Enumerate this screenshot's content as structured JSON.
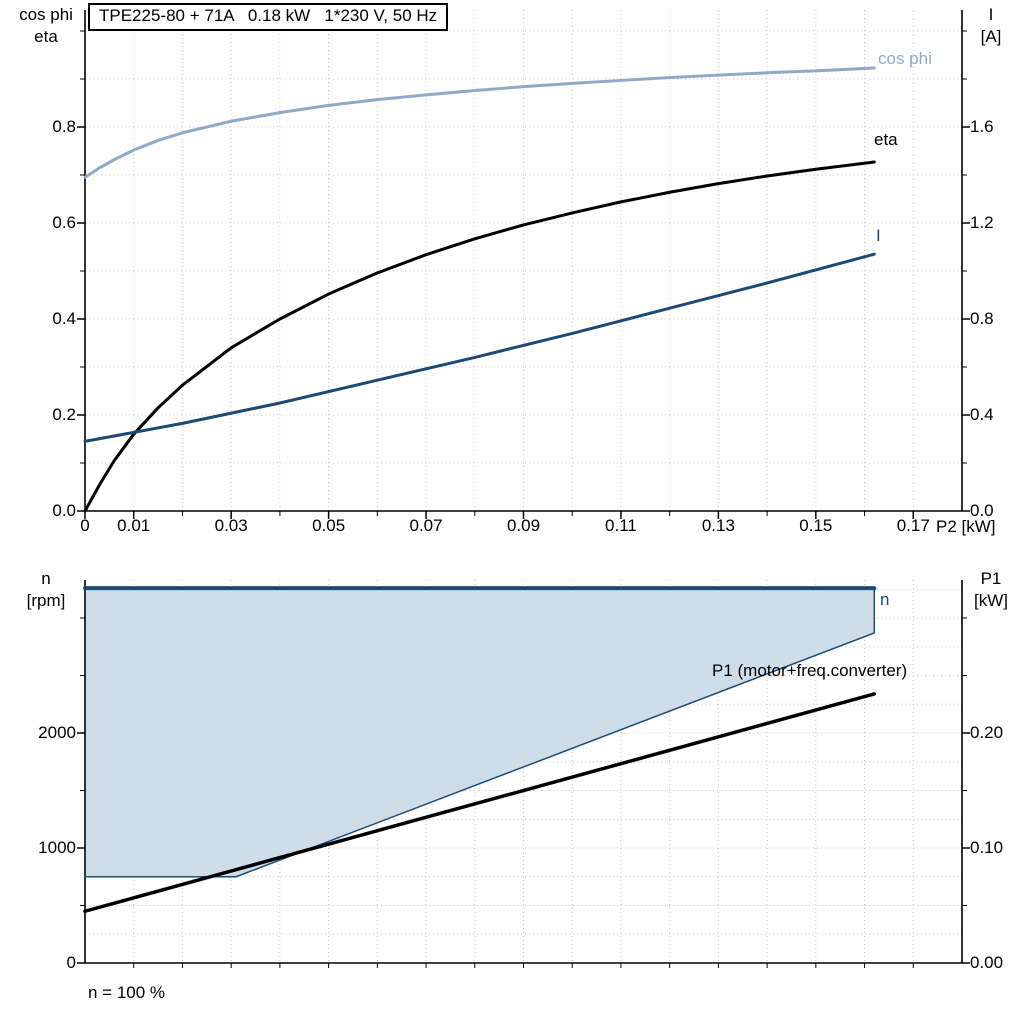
{
  "header": {
    "title": "TPE225-80 + 71A   0.18 kW   1*230 V, 50 Hz"
  },
  "colors": {
    "cos_phi": "#8fa9c7",
    "dark_blue": "#1b4a72",
    "black": "#000000",
    "band_fill": "#cfdde9",
    "grid": "#c3c3c3"
  },
  "top_chart": {
    "left_axis_line1": "cos phi",
    "left_axis_line2": "eta",
    "right_axis_line1": "I",
    "right_axis_line2": "[A]",
    "x_axis_label": "P2 [kW]",
    "curve_labels": {
      "cos_phi": "cos phi",
      "eta": "eta",
      "current": "I"
    }
  },
  "bottom_chart": {
    "left_axis_line1": "n",
    "left_axis_line2": "[rpm]",
    "right_axis_line1": "P1",
    "right_axis_line2": "[kW]",
    "curve_labels": {
      "n": "n",
      "p1": "P1 (motor+freq.converter)"
    },
    "caption": "n = 100 %"
  },
  "chart_data": [
    {
      "type": "line",
      "title": "TPE225-80 + 71A   0.18 kW   1*230 V, 50 Hz",
      "xlabel": "P2 [kW]",
      "ylabel_left": "cos phi / eta",
      "ylabel_right": "I [A]",
      "xlim": [
        0,
        0.18
      ],
      "ylim_left": [
        0,
        1.0
      ],
      "ylim_right": [
        0,
        2.0
      ],
      "grid": true,
      "legend_position": "right-of-curve-ends",
      "x_ticks": [
        0,
        0.01,
        0.03,
        0.05,
        0.07,
        0.09,
        0.11,
        0.13,
        0.15,
        0.17
      ],
      "x_tick_labels": [
        "0",
        "0.01",
        "0.03",
        "0.05",
        "0.07",
        "0.09",
        "0.11",
        "0.13",
        "0.15",
        "0.17"
      ],
      "x_minor_ticks": [
        0.02,
        0.04,
        0.06,
        0.08,
        0.1,
        0.12,
        0.14,
        0.16
      ],
      "y_ticks_left": [
        0,
        0.2,
        0.4,
        0.6,
        0.8
      ],
      "y_tick_labels_left": [
        "0.0",
        "0.2",
        "0.4",
        "0.6",
        "0.8"
      ],
      "y_minor_ticks_left": [
        0.1,
        0.3,
        0.5,
        0.7,
        0.9,
        1.0
      ],
      "y_ticks_right": [
        0,
        0.4,
        0.8,
        1.2,
        1.6
      ],
      "y_tick_labels_right": [
        "0.0",
        "0.4",
        "0.8",
        "1.2",
        "1.6"
      ],
      "y_minor_ticks_right": [
        0.2,
        0.6,
        1.0,
        1.4,
        1.8,
        2.0
      ],
      "series": [
        {
          "name": "cos phi",
          "axis": "left",
          "color": "#8fa9c7",
          "width": 3,
          "x": [
            0,
            0.003,
            0.006,
            0.01,
            0.015,
            0.02,
            0.03,
            0.04,
            0.05,
            0.06,
            0.07,
            0.08,
            0.09,
            0.1,
            0.11,
            0.12,
            0.13,
            0.14,
            0.15,
            0.162
          ],
          "y": [
            0.695,
            0.715,
            0.732,
            0.752,
            0.772,
            0.788,
            0.812,
            0.83,
            0.845,
            0.857,
            0.867,
            0.876,
            0.884,
            0.891,
            0.897,
            0.903,
            0.908,
            0.913,
            0.917,
            0.923
          ]
        },
        {
          "name": "eta",
          "axis": "left",
          "color": "#000000",
          "width": 3,
          "x": [
            0,
            0.003,
            0.006,
            0.01,
            0.015,
            0.02,
            0.03,
            0.04,
            0.05,
            0.06,
            0.07,
            0.08,
            0.09,
            0.1,
            0.11,
            0.12,
            0.13,
            0.14,
            0.15,
            0.162
          ],
          "y": [
            0,
            0.055,
            0.105,
            0.16,
            0.215,
            0.262,
            0.34,
            0.4,
            0.452,
            0.496,
            0.534,
            0.567,
            0.596,
            0.621,
            0.644,
            0.664,
            0.682,
            0.698,
            0.712,
            0.727
          ]
        },
        {
          "name": "I",
          "axis": "right",
          "color": "#1b4a72",
          "width": 3,
          "x": [
            0,
            0.02,
            0.04,
            0.06,
            0.08,
            0.1,
            0.12,
            0.14,
            0.162
          ],
          "y": [
            0.29,
            0.365,
            0.45,
            0.545,
            0.64,
            0.74,
            0.845,
            0.95,
            1.07
          ]
        }
      ]
    },
    {
      "type": "line",
      "xlabel": "",
      "ylabel_left": "n [rpm]",
      "ylabel_right": "P1 [kW]",
      "xlim": [
        0,
        0.18
      ],
      "ylim_left": [
        0,
        3330
      ],
      "ylim_right": [
        0,
        0.333
      ],
      "grid": true,
      "caption": "n = 100 %",
      "y_ticks_left": [
        0,
        1000,
        2000
      ],
      "y_tick_labels_left": [
        "0",
        "1000",
        "2000"
      ],
      "y_minor_ticks_left": [
        500,
        1500,
        2500,
        3000
      ],
      "y_ticks_right": [
        0,
        0.1,
        0.2
      ],
      "y_tick_labels_right": [
        "0.00",
        "0.10",
        "0.20"
      ],
      "y_minor_ticks_right": [
        0.05,
        0.15,
        0.25,
        0.3
      ],
      "x_minor_ticks": [
        0.01,
        0.02,
        0.03,
        0.04,
        0.05,
        0.06,
        0.07,
        0.08,
        0.09,
        0.1,
        0.11,
        0.12,
        0.13,
        0.14,
        0.15,
        0.16,
        0.17
      ],
      "band": {
        "fill": "#cfdde9",
        "upper_rpm": 3260,
        "lower": {
          "x": [
            0,
            0.031,
            0.162
          ],
          "rpm": [
            750,
            750,
            2870
          ]
        }
      },
      "series": [
        {
          "name": "n",
          "axis": "left",
          "color": "#1b4a72",
          "width": 4,
          "x": [
            0,
            0.162
          ],
          "y": [
            3260,
            3260
          ]
        },
        {
          "name": "n range lower bound",
          "axis": "left",
          "color": "#1b4a72",
          "width": 1.5,
          "x": [
            0,
            0.031,
            0.162
          ],
          "y": [
            750,
            750,
            2870
          ]
        },
        {
          "name": "P1 (motor+freq.converter)",
          "axis": "right",
          "color": "#000000",
          "width": 3.5,
          "x": [
            0,
            0.162
          ],
          "y": [
            0.045,
            0.234
          ]
        }
      ]
    }
  ]
}
